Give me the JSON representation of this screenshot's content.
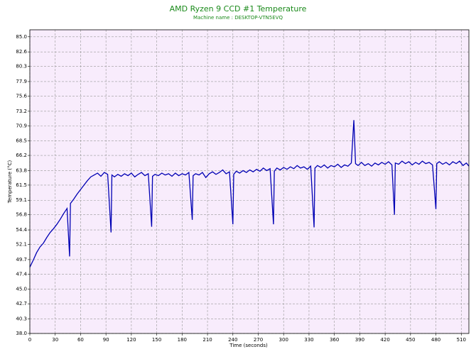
{
  "chart_data": {
    "type": "line",
    "title": "AMD Ryzen 9 CCD #1 Temperature",
    "subtitle": "Machine name : DESKTOP-VTN5EVQ",
    "x_label": "Time (seconds)",
    "y_label": "Temperature (°C)",
    "title_color": "#1a8a1a",
    "color": "#0000b4",
    "background": "#f8ecfc",
    "grid": true,
    "xlim": [
      0,
      519
    ],
    "ylim": [
      38,
      86.1
    ],
    "xticks": [
      0,
      30,
      60,
      90,
      120,
      150,
      180,
      210,
      240,
      270,
      300,
      330,
      360,
      390,
      420,
      450,
      480,
      510
    ],
    "yticks": [
      {
        "value": 38,
        "label": "38.0"
      },
      40.3,
      42.7,
      {
        "value": 45,
        "label": "45.0"
      },
      47.4,
      49.7,
      52.1,
      54.4,
      56.8,
      59.1,
      61.5,
      63.8,
      66.2,
      68.5,
      70.9,
      73.2,
      75.6,
      77.9,
      80.3,
      82.6,
      {
        "value": 85,
        "label": "85.0"
      }
    ],
    "x": [
      0,
      4,
      8,
      12,
      16,
      20,
      24,
      28,
      32,
      36,
      40,
      44,
      47,
      48,
      52,
      56,
      60,
      64,
      68,
      72,
      76,
      80,
      84,
      88,
      92,
      96,
      97,
      100,
      104,
      108,
      112,
      116,
      120,
      124,
      128,
      132,
      136,
      140,
      144,
      145,
      148,
      152,
      156,
      160,
      164,
      168,
      172,
      176,
      180,
      184,
      188,
      192,
      193,
      196,
      200,
      204,
      208,
      212,
      216,
      220,
      224,
      228,
      232,
      236,
      240,
      241,
      244,
      248,
      252,
      256,
      260,
      264,
      268,
      272,
      276,
      280,
      284,
      288,
      289,
      292,
      296,
      300,
      304,
      308,
      312,
      316,
      320,
      324,
      328,
      332,
      336,
      337,
      340,
      344,
      348,
      352,
      356,
      360,
      364,
      368,
      372,
      376,
      380,
      383,
      385,
      388,
      392,
      396,
      400,
      404,
      408,
      412,
      416,
      420,
      424,
      428,
      431,
      432,
      436,
      440,
      444,
      448,
      452,
      456,
      460,
      464,
      468,
      472,
      476,
      480,
      481,
      484,
      488,
      492,
      496,
      500,
      504,
      508,
      512,
      516,
      519
    ],
    "values": [
      48.5,
      49.6,
      50.8,
      51.7,
      52.3,
      53.2,
      54.0,
      54.6,
      55.3,
      56.1,
      57.0,
      57.8,
      50.2,
      58.6,
      59.3,
      60.1,
      60.8,
      61.5,
      62.2,
      62.8,
      63.1,
      63.4,
      62.9,
      63.5,
      63.2,
      54.0,
      63.1,
      62.8,
      63.2,
      62.9,
      63.3,
      63.0,
      63.4,
      62.8,
      63.2,
      63.5,
      63.0,
      63.3,
      54.9,
      62.9,
      63.2,
      63.0,
      63.4,
      63.1,
      63.3,
      62.9,
      63.4,
      63.0,
      63.3,
      63.1,
      63.5,
      56.0,
      63.0,
      63.3,
      63.1,
      63.5,
      62.7,
      63.3,
      63.6,
      63.2,
      63.5,
      63.9,
      63.3,
      63.6,
      55.3,
      63.2,
      63.7,
      63.4,
      63.8,
      63.5,
      63.9,
      63.6,
      64.0,
      63.7,
      64.2,
      63.8,
      64.1,
      55.3,
      63.7,
      64.2,
      63.9,
      64.3,
      64.0,
      64.4,
      64.1,
      64.6,
      64.2,
      64.4,
      64.0,
      64.5,
      54.8,
      64.2,
      64.6,
      64.3,
      64.7,
      64.2,
      64.6,
      64.4,
      64.8,
      64.3,
      64.7,
      64.5,
      65.0,
      71.8,
      64.9,
      64.6,
      65.1,
      64.6,
      64.9,
      64.5,
      65.0,
      64.7,
      65.1,
      64.8,
      65.2,
      64.7,
      56.8,
      65.0,
      64.8,
      65.3,
      64.9,
      65.2,
      64.7,
      65.1,
      64.8,
      65.3,
      64.9,
      65.1,
      64.7,
      57.7,
      64.9,
      65.2,
      64.8,
      65.1,
      64.7,
      65.2,
      64.9,
      65.3,
      64.6,
      65.0,
      64.5
    ]
  }
}
